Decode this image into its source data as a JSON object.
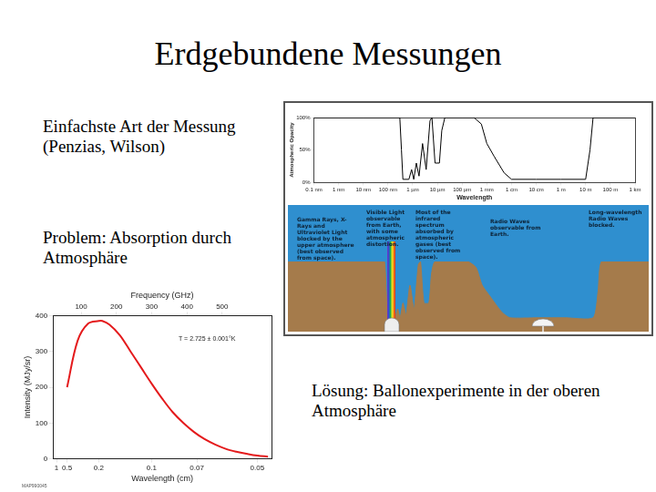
{
  "slide": {
    "title": "Erdgebundene Messungen",
    "texts": [
      "Einfachste Art der Messung (Penzias, Wilson)",
      "Problem: Absorption durch Atmosphäre",
      "Lösung: Ballonexperimente in der oberen Atmosphäre"
    ]
  },
  "opacity_chart": {
    "type": "line",
    "y_label": "Atmospheric Opacity",
    "x_label": "Wavelength",
    "x": [
      1e-10,
      1e-09,
      1e-08,
      1e-07,
      2e-07,
      3e-07,
      3.5e-07,
      4e-07,
      7e-07,
      9e-07,
      1.1e-06,
      1.4e-06,
      1.8e-06,
      2.5e-06,
      3.5e-06,
      5e-06,
      6e-06,
      8e-06,
      1.2e-05,
      1.5e-05,
      2e-05,
      0.0001,
      0.0003,
      0.0006,
      0.001,
      0.002,
      0.005,
      0.01,
      0.1,
      1,
      10,
      15,
      20,
      100,
      1000
    ],
    "values": [
      100,
      100,
      100,
      100,
      100,
      100,
      50,
      5,
      5,
      20,
      5,
      30,
      10,
      60,
      20,
      95,
      100,
      30,
      30,
      80,
      100,
      100,
      100,
      90,
      60,
      40,
      15,
      5,
      5,
      5,
      5,
      50,
      100,
      100,
      100
    ],
    "color": "#000000",
    "log": "x",
    "grid": false,
    "xlim": [
      1e-10,
      1000
    ],
    "xticks": [
      {
        "value": 1e-10,
        "label": "0.1 nm"
      },
      {
        "value": 1e-09,
        "label": "1 nm"
      },
      {
        "value": 1e-08,
        "label": "10 nm"
      },
      {
        "value": 1e-07,
        "label": "100 nm"
      },
      {
        "value": 1e-06,
        "label": "1 µm"
      },
      {
        "value": 1e-05,
        "label": "10 µm"
      },
      {
        "value": 0.0001,
        "label": "100 µm"
      },
      {
        "value": 0.001,
        "label": "1 mm"
      },
      {
        "value": 0.01,
        "label": "1 cm"
      },
      {
        "value": 0.1,
        "label": "10 cm"
      },
      {
        "value": 1,
        "label": "1 m"
      },
      {
        "value": 10,
        "label": "10 m"
      },
      {
        "value": 100,
        "label": "100 m"
      },
      {
        "value": 1000,
        "label": "1 km"
      }
    ],
    "ylim": [
      0,
      100
    ],
    "yticks": [
      {
        "value": 0,
        "label": "0%"
      },
      {
        "value": 50,
        "label": "50%"
      },
      {
        "value": 100,
        "label": "100%"
      }
    ],
    "annotations": [
      "Gamma Rays, X-Rays and Ultraviolet Light blocked by the upper atmosphere (best observed from space).",
      "Visible Light observable from Earth, with some atmospheric distortion.",
      "Most of the infrared spectrum absorbed by atmospheric gases (best observed from space).",
      "Radio Waves observable from Earth.",
      "Long-wavelength Radio Waves blocked."
    ]
  },
  "chart_data": {
    "type": "line",
    "x_label": "Frequency (GHz)",
    "x2_label": "Wavelength (cm)",
    "y_label": "Intensity (MJy/sr)",
    "x": [
      60,
      90,
      120,
      150,
      160,
      180,
      210,
      240,
      270,
      300,
      330,
      360,
      390,
      420,
      450,
      480,
      510,
      540,
      570,
      600,
      630
    ],
    "values": [
      200,
      330,
      378,
      385,
      385,
      375,
      345,
      300,
      255,
      210,
      168,
      130,
      100,
      75,
      55,
      40,
      28,
      20,
      14,
      9,
      6
    ],
    "color": "#e41a1c",
    "marker": "none",
    "line_style": "solid",
    "grid": false,
    "xlim": [
      20,
      640
    ],
    "xticks": [
      100,
      200,
      300,
      400,
      500
    ],
    "x2ticks": [
      1,
      0.5,
      0.2,
      0.1,
      0.07,
      0.05
    ],
    "ylim": [
      0,
      400
    ],
    "yticks": [
      0,
      100,
      200,
      300,
      400
    ],
    "annotations": [
      "T = 2.725 ± 0.001°K",
      "MAP990045"
    ]
  }
}
